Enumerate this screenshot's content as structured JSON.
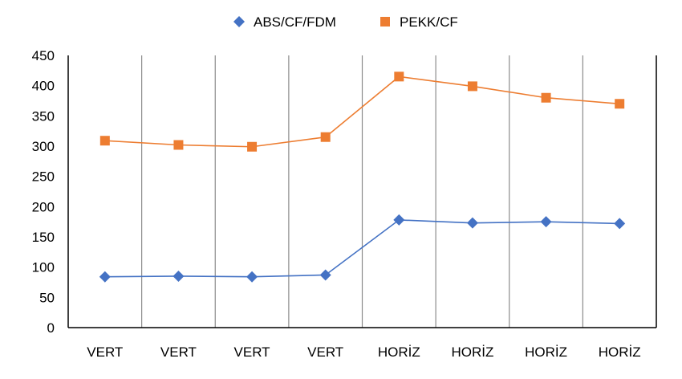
{
  "chart_data": {
    "type": "line",
    "categories": [
      "VERT",
      "VERT",
      "VERT",
      "VERT",
      "HORİZ",
      "HORİZ",
      "HORİZ",
      "HORİZ"
    ],
    "series": [
      {
        "name": "ABS/CF/FDM",
        "values": [
          84,
          85,
          84,
          87,
          178,
          173,
          175,
          172
        ],
        "color": "#4472C4",
        "marker": "diamond"
      },
      {
        "name": "PEKK/CF",
        "values": [
          309,
          302,
          299,
          315,
          415,
          399,
          380,
          370
        ],
        "color": "#ED7D31",
        "marker": "square"
      }
    ],
    "title": "",
    "xlabel": "",
    "ylabel": "",
    "ylim": [
      0,
      450
    ],
    "yticks": [
      0,
      50,
      100,
      150,
      200,
      250,
      300,
      350,
      400,
      450
    ],
    "grid": "vertical",
    "legend": "top"
  }
}
